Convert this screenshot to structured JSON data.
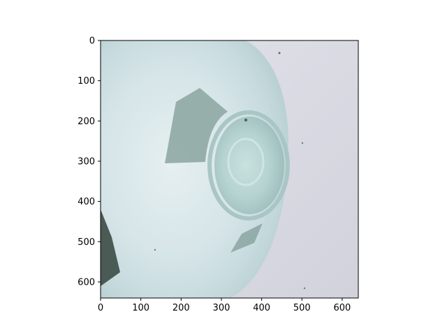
{
  "chart_data": {
    "type": "image",
    "title": "",
    "xlabel": "",
    "ylabel": "",
    "xlim": [
      0,
      640
    ],
    "ylim": [
      640,
      0
    ],
    "x_ticks": [
      0,
      100,
      200,
      300,
      400,
      500,
      600
    ],
    "y_ticks": [
      0,
      100,
      200,
      300,
      400,
      500,
      600
    ],
    "y_inverted": true,
    "grid": false,
    "content": "photo of the bottom of a clear glass bottle on a light surface"
  },
  "colors": {
    "background": "#ffffff",
    "axis": "#000000",
    "surface": "#d8d8e2",
    "glass_light": "#dbe7ea",
    "glass_mid": "#b9d3d3",
    "glass_dark": "#88a8a4",
    "shadow": "#4a5a54"
  }
}
